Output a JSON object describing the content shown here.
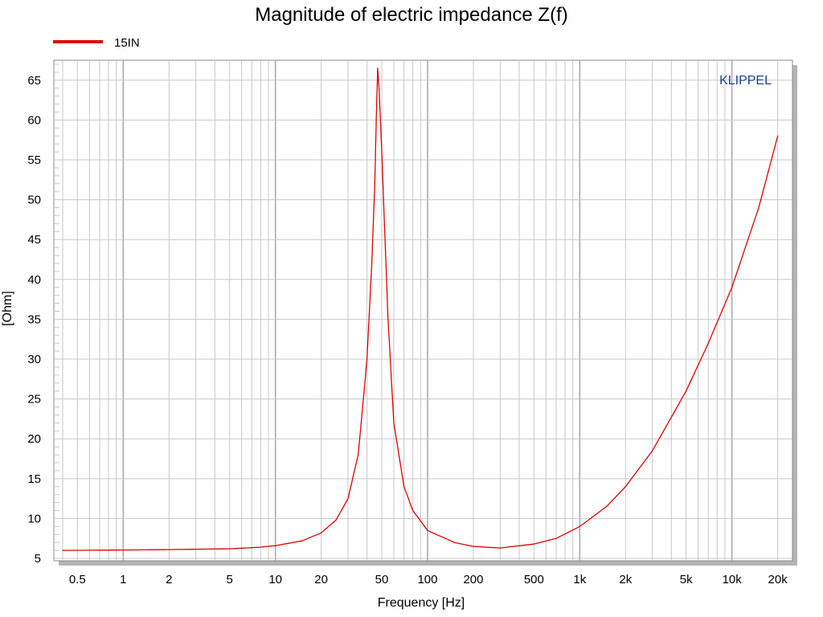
{
  "chart_data": {
    "type": "line",
    "title": "Magnitude of electric impedance Z(f)",
    "xlabel": "Frequency [Hz]",
    "ylabel": "[Ohm]",
    "x_scale": "log",
    "xlim": [
      0.35,
      25000
    ],
    "ylim": [
      4.7,
      67.5
    ],
    "grid": true,
    "legend_position": "top-left",
    "brand": "KLIPPEL",
    "colors": {
      "series": "#e00000",
      "brand": "#1f3f8f",
      "grid": "#c8c8c8",
      "major_grid": "#aaaaaa",
      "shadow": "#b4b4b4"
    },
    "x_ticks": [
      {
        "value": 0.5,
        "label": "0.5"
      },
      {
        "value": 1,
        "label": "1"
      },
      {
        "value": 2,
        "label": "2"
      },
      {
        "value": 5,
        "label": "5"
      },
      {
        "value": 10,
        "label": "10"
      },
      {
        "value": 20,
        "label": "20"
      },
      {
        "value": 50,
        "label": "50"
      },
      {
        "value": 100,
        "label": "100"
      },
      {
        "value": 200,
        "label": "200"
      },
      {
        "value": 500,
        "label": "500"
      },
      {
        "value": 1000,
        "label": "1k"
      },
      {
        "value": 2000,
        "label": "2k"
      },
      {
        "value": 5000,
        "label": "5k"
      },
      {
        "value": 10000,
        "label": "10k"
      },
      {
        "value": 20000,
        "label": "20k"
      }
    ],
    "y_ticks": [
      {
        "value": 5,
        "label": "5"
      },
      {
        "value": 10,
        "label": "10"
      },
      {
        "value": 15,
        "label": "15"
      },
      {
        "value": 20,
        "label": "20"
      },
      {
        "value": 25,
        "label": "25"
      },
      {
        "value": 30,
        "label": "30"
      },
      {
        "value": 35,
        "label": "35"
      },
      {
        "value": 40,
        "label": "40"
      },
      {
        "value": 45,
        "label": "45"
      },
      {
        "value": 50,
        "label": "50"
      },
      {
        "value": 55,
        "label": "55"
      },
      {
        "value": 60,
        "label": "60"
      },
      {
        "value": 65,
        "label": "65"
      }
    ],
    "series": [
      {
        "name": "15IN",
        "points": [
          [
            0.4,
            6.0
          ],
          [
            1,
            6.05
          ],
          [
            2,
            6.1
          ],
          [
            5,
            6.2
          ],
          [
            8,
            6.4
          ],
          [
            10,
            6.6
          ],
          [
            15,
            7.2
          ],
          [
            20,
            8.2
          ],
          [
            25,
            9.8
          ],
          [
            30,
            12.5
          ],
          [
            35,
            18.0
          ],
          [
            40,
            30.0
          ],
          [
            43,
            42.0
          ],
          [
            45,
            52.0
          ],
          [
            46,
            60.0
          ],
          [
            47,
            66.5
          ],
          [
            48,
            64.0
          ],
          [
            50,
            56.0
          ],
          [
            55,
            35.0
          ],
          [
            60,
            22.0
          ],
          [
            70,
            14.0
          ],
          [
            80,
            11.0
          ],
          [
            100,
            8.5
          ],
          [
            150,
            7.0
          ],
          [
            200,
            6.5
          ],
          [
            300,
            6.3
          ],
          [
            500,
            6.8
          ],
          [
            700,
            7.5
          ],
          [
            1000,
            9.0
          ],
          [
            1500,
            11.5
          ],
          [
            2000,
            14.0
          ],
          [
            3000,
            18.5
          ],
          [
            5000,
            26.0
          ],
          [
            7000,
            32.0
          ],
          [
            10000,
            39.0
          ],
          [
            15000,
            49.0
          ],
          [
            20000,
            58.0
          ]
        ]
      }
    ]
  }
}
